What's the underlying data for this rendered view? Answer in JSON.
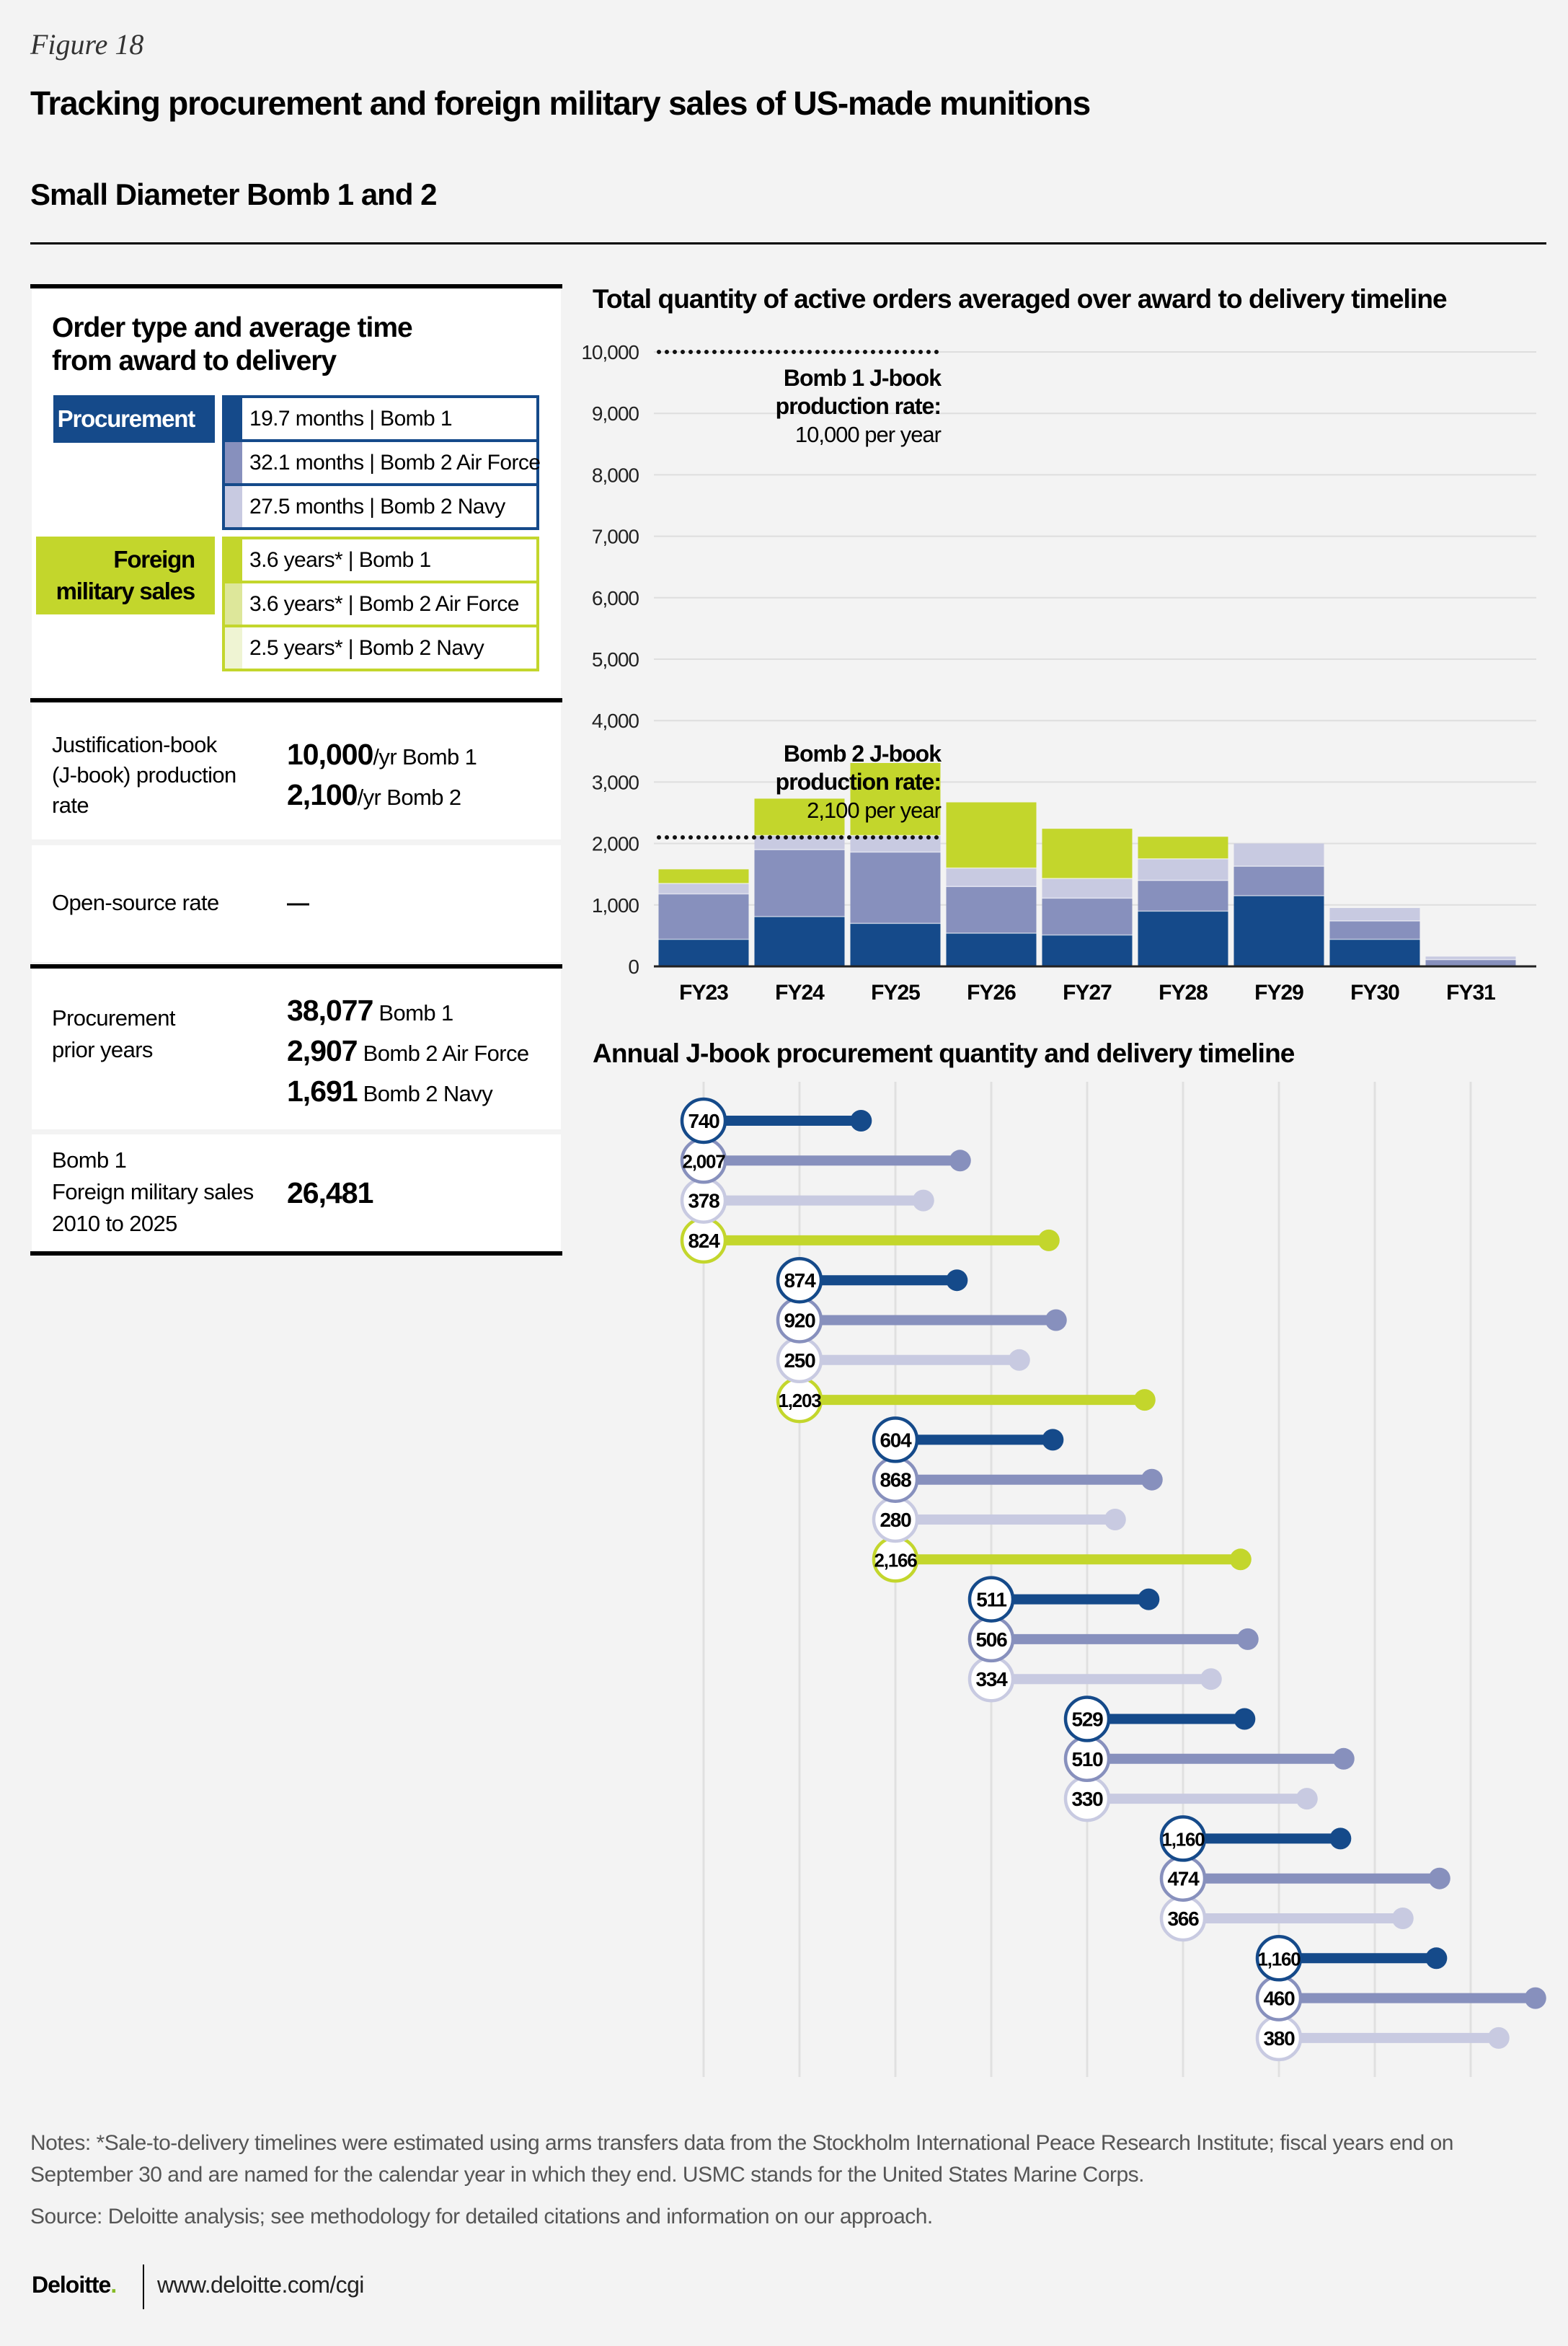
{
  "header": {
    "figure_label": "Figure 18",
    "title": "Tracking procurement and foreign military sales of US-made munitions",
    "subtitle": "Small Diameter Bomb 1 and 2"
  },
  "colors": {
    "bomb1": "#154a8a",
    "bomb2_air_force": "#8790bd",
    "bomb2_navy": "#c8cae1",
    "foreign_military_sales": "#c3d62c",
    "fms_bomb2_air_force_legend": "#dde79a",
    "fms_bomb2_navy_legend": "#eff4d3",
    "background": "#f3f3f3"
  },
  "left_panel": {
    "heading_line1": "Order type and average time",
    "heading_line2": "from award to delivery",
    "procurement": {
      "label": "Procurement",
      "items": [
        "19.7 months | Bomb 1",
        "32.1 months | Bomb 2 Air Force",
        "27.5 months | Bomb 2 Navy"
      ]
    },
    "fms": {
      "label_line1": "Foreign",
      "label_line2": "military sales",
      "items": [
        "3.6 years*  | Bomb 1",
        "3.6 years*  | Bomb 2 Air Force",
        "2.5 years*  | Bomb 2 Navy"
      ]
    },
    "jbook": {
      "label_lines": [
        "Justification-book",
        "(J-book) production",
        "rate"
      ],
      "values": [
        {
          "number": "10,000",
          "unit": "/yr Bomb 1"
        },
        {
          "number": "2,100",
          "unit": "/yr Bomb 2"
        }
      ]
    },
    "open_source": {
      "label": "Open-source rate",
      "value": "—"
    },
    "prior": {
      "label_lines": [
        "Procurement",
        "prior years"
      ],
      "values": [
        {
          "number": "38,077",
          "unit": " Bomb 1"
        },
        {
          "number": "2,907",
          "unit": " Bomb 2 Air Force"
        },
        {
          "number": "1,691",
          "unit": " Bomb 2 Navy"
        }
      ]
    },
    "fms_total": {
      "label_lines": [
        "Bomb 1",
        "Foreign military sales",
        "2010 to 2025"
      ],
      "value": "26,481"
    }
  },
  "chart_data": [
    {
      "type": "bar",
      "stacked": true,
      "title": "Total quantity of active orders averaged over award to delivery timeline",
      "categories": [
        "FY23",
        "FY24",
        "FY25",
        "FY26",
        "FY27",
        "FY28",
        "FY29",
        "FY30",
        "FY31"
      ],
      "ylim": [
        0,
        10000
      ],
      "yticks": [
        "0",
        "1,000",
        "2,000",
        "3,000",
        "4,000",
        "5,000",
        "6,000",
        "7,000",
        "8,000",
        "9,000",
        "10,000"
      ],
      "grid": true,
      "series": [
        {
          "color": "#154a8a",
          "values": [
            440,
            810,
            700,
            540,
            510,
            900,
            1150,
            440,
            0
          ]
        },
        {
          "color": "#8790bd",
          "values": [
            740,
            1090,
            1160,
            760,
            600,
            500,
            480,
            300,
            110
          ]
        },
        {
          "color": "#c8cae1",
          "values": [
            170,
            230,
            270,
            300,
            320,
            350,
            370,
            210,
            50
          ]
        },
        {
          "color": "#c3d62c",
          "values": [
            230,
            600,
            1180,
            1070,
            810,
            360,
            0,
            0,
            0
          ]
        }
      ],
      "reference_lines": [
        {
          "value": 10000,
          "label_bold": [
            "Bomb 1 J-book",
            "production rate:"
          ],
          "label": "10,000 per year"
        },
        {
          "value": 2100,
          "label_bold": [
            "Bomb 2 J-book",
            "production rate:"
          ],
          "label": "2,100 per year"
        }
      ]
    },
    {
      "type": "lollipop",
      "title": "Annual J-book procurement quantity and delivery timeline",
      "timeline_years": [
        "FY23",
        "FY24",
        "FY25",
        "FY26",
        "FY27",
        "FY28",
        "FY29",
        "FY30",
        "FY31"
      ],
      "series_durations_months": {
        "bomb1": 19.7,
        "bomb2_air_force": 32.1,
        "bomb2_navy": 27.5,
        "foreign_military_sales": 43.2
      },
      "groups": [
        {
          "award_year": "FY23",
          "rows": [
            {
              "series": "bomb1",
              "quantity": "740"
            },
            {
              "series": "bomb2_air_force",
              "quantity": "2,007"
            },
            {
              "series": "bomb2_navy",
              "quantity": "378"
            },
            {
              "series": "foreign_military_sales",
              "quantity": "824"
            }
          ]
        },
        {
          "award_year": "FY24",
          "rows": [
            {
              "series": "bomb1",
              "quantity": "874"
            },
            {
              "series": "bomb2_air_force",
              "quantity": "920"
            },
            {
              "series": "bomb2_navy",
              "quantity": "250"
            },
            {
              "series": "foreign_military_sales",
              "quantity": "1,203"
            }
          ]
        },
        {
          "award_year": "FY25",
          "rows": [
            {
              "series": "bomb1",
              "quantity": "604"
            },
            {
              "series": "bomb2_air_force",
              "quantity": "868"
            },
            {
              "series": "bomb2_navy",
              "quantity": "280"
            },
            {
              "series": "foreign_military_sales",
              "quantity": "2,166"
            }
          ]
        },
        {
          "award_year": "FY26",
          "rows": [
            {
              "series": "bomb1",
              "quantity": "511"
            },
            {
              "series": "bomb2_air_force",
              "quantity": "506"
            },
            {
              "series": "bomb2_navy",
              "quantity": "334"
            }
          ]
        },
        {
          "award_year": "FY27",
          "rows": [
            {
              "series": "bomb1",
              "quantity": "529"
            },
            {
              "series": "bomb2_air_force",
              "quantity": "510"
            },
            {
              "series": "bomb2_navy",
              "quantity": "330"
            }
          ]
        },
        {
          "award_year": "FY28",
          "rows": [
            {
              "series": "bomb1",
              "quantity": "1,160"
            },
            {
              "series": "bomb2_air_force",
              "quantity": "474"
            },
            {
              "series": "bomb2_navy",
              "quantity": "366"
            }
          ]
        },
        {
          "award_year": "FY29",
          "rows": [
            {
              "series": "bomb1",
              "quantity": "1,160"
            },
            {
              "series": "bomb2_air_force",
              "quantity": "460"
            },
            {
              "series": "bomb2_navy",
              "quantity": "380"
            }
          ]
        }
      ]
    }
  ],
  "notes": {
    "notes": "Notes: *Sale-to-delivery timelines were estimated using arms transfers data from the Stockholm International Peace Research Institute; fiscal years end on September 30 and are named for the calendar year in which they end. USMC stands for the United States Marine Corps.",
    "source": "Source: Deloitte analysis; see methodology for detailed citations and information on our approach."
  },
  "footer": {
    "logo": "Deloitte",
    "logo_dot": ".",
    "url": "www.deloitte.com/cgi"
  }
}
